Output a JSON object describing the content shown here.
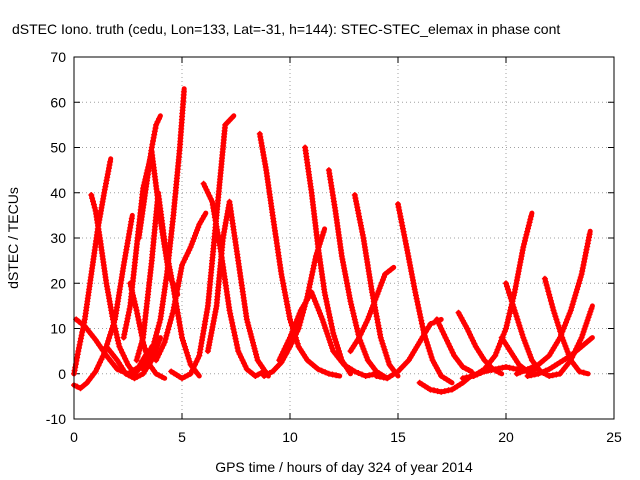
{
  "chart_data": {
    "type": "scatter",
    "title": "dSTEC Iono. truth (cedu, Lon=133, Lat=-31, h=144): STEC-STEC_elemax in phase cont",
    "xlabel": "GPS time / hours of day 324 of year 2014",
    "ylabel": "dSTEC  / TECUs",
    "xlim": [
      0,
      25
    ],
    "ylim": [
      -10,
      70
    ],
    "xticks": [
      "0",
      "5",
      "10",
      "15",
      "20",
      "25"
    ],
    "yticks": [
      "-10",
      "0",
      "10",
      "20",
      "30",
      "40",
      "50",
      "60",
      "70"
    ],
    "grid": true,
    "color": "#ff0000",
    "series": [
      {
        "x": [
          0.0,
          0.3,
          0.6,
          1.0,
          1.4,
          1.9,
          2.3,
          2.7
        ],
        "y": [
          -2.5,
          -3.2,
          -2.0,
          0.5,
          4.5,
          12.0,
          24.0,
          35.0
        ]
      },
      {
        "x": [
          0.0,
          0.2,
          0.5,
          0.8,
          1.1,
          1.4,
          1.7
        ],
        "y": [
          0.0,
          5.0,
          12.0,
          22.0,
          32.0,
          40.0,
          47.5
        ]
      },
      {
        "x": [
          0.1,
          0.5,
          1.0,
          1.5,
          2.0,
          2.5,
          3.0,
          3.3
        ],
        "y": [
          12.0,
          10.5,
          7.5,
          4.0,
          1.0,
          0.0,
          1.5,
          4.0
        ]
      },
      {
        "x": [
          0.8,
          1.0,
          1.2,
          1.5,
          1.8,
          2.1,
          2.5,
          2.8,
          3.2,
          3.6
        ],
        "y": [
          39.5,
          36.0,
          30.0,
          20.0,
          12.0,
          6.0,
          2.0,
          0.0,
          2.0,
          6.0
        ]
      },
      {
        "x": [
          1.5,
          2.0,
          2.4,
          2.8,
          3.2,
          3.6,
          4.0
        ],
        "y": [
          6.0,
          3.0,
          0.0,
          -1.0,
          0.0,
          3.0,
          8.0
        ]
      },
      {
        "x": [
          2.3,
          2.6,
          2.9,
          3.2,
          3.6,
          4.0,
          4.4,
          4.8
        ],
        "y": [
          8.0,
          15.0,
          28.0,
          41.0,
          49.0,
          34.0,
          22.0,
          17.5
        ]
      },
      {
        "x": [
          2.6,
          2.9,
          3.2,
          3.5,
          3.8,
          4.2
        ],
        "y": [
          20.0,
          14.0,
          7.0,
          2.0,
          0.0,
          -1.0
        ]
      },
      {
        "x": [
          2.9,
          3.2,
          3.6,
          3.9,
          4.2,
          4.6,
          5.0,
          5.4,
          5.8
        ],
        "y": [
          3.0,
          8.0,
          25.0,
          40.0,
          29.0,
          19.0,
          8.0,
          2.0,
          -0.5
        ]
      },
      {
        "x": [
          3.0,
          3.3,
          3.6,
          3.8,
          4.0
        ],
        "y": [
          30.0,
          40.0,
          50.0,
          55.0,
          57.0
        ]
      },
      {
        "x": [
          3.8,
          4.2,
          4.6,
          5.0,
          5.4,
          5.8,
          6.1
        ],
        "y": [
          3.0,
          7.0,
          14.0,
          24.0,
          28.0,
          33.0,
          35.5
        ]
      },
      {
        "x": [
          3.2,
          3.6,
          4.0,
          4.3,
          4.6,
          4.9,
          5.1
        ],
        "y": [
          1.0,
          5.0,
          12.0,
          22.0,
          35.0,
          50.0,
          63.0
        ]
      },
      {
        "x": [
          4.5,
          5.0,
          5.4,
          5.8,
          6.2,
          6.6,
          7.0,
          7.4
        ],
        "y": [
          0.5,
          -1.0,
          0.0,
          4.0,
          15.0,
          35.0,
          55.0,
          57.0
        ]
      },
      {
        "x": [
          6.0,
          6.4,
          6.8,
          7.2,
          7.6,
          8.0,
          8.4,
          8.8
        ],
        "y": [
          42.0,
          38.0,
          27.0,
          14.0,
          5.0,
          1.0,
          -0.5,
          0.5
        ]
      },
      {
        "x": [
          6.2,
          6.6,
          6.9,
          7.2,
          7.6,
          8.0,
          8.5,
          9.0
        ],
        "y": [
          5.0,
          15.0,
          30.0,
          38.0,
          25.0,
          12.0,
          3.0,
          -0.5
        ]
      },
      {
        "x": [
          8.6,
          8.9,
          9.2,
          9.6,
          10.0,
          10.4,
          10.8,
          11.3,
          11.8,
          12.3
        ],
        "y": [
          53.0,
          45.0,
          35.0,
          22.0,
          12.0,
          6.0,
          3.0,
          1.0,
          0.0,
          -0.5
        ]
      },
      {
        "x": [
          8.8,
          9.2,
          9.6,
          10.0,
          10.4,
          10.8,
          11.2,
          11.6
        ],
        "y": [
          -0.5,
          0.5,
          2.5,
          6.0,
          10.0,
          17.0,
          26.0,
          32.0
        ]
      },
      {
        "x": [
          10.7,
          11.0,
          11.3,
          11.6,
          12.0,
          12.4,
          12.8
        ],
        "y": [
          50.0,
          40.0,
          28.0,
          18.0,
          9.0,
          3.0,
          0.0
        ]
      },
      {
        "x": [
          9.5,
          10.0,
          10.5,
          11.0,
          11.5,
          12.0,
          12.5,
          13.0,
          13.5,
          14.0
        ],
        "y": [
          3.0,
          8.0,
          14.0,
          18.0,
          12.0,
          5.0,
          2.0,
          0.5,
          -0.5,
          0.0
        ]
      },
      {
        "x": [
          11.8,
          12.1,
          12.4,
          12.8,
          13.2,
          13.6,
          14.0,
          14.5
        ],
        "y": [
          45.0,
          36.0,
          26.0,
          16.0,
          8.0,
          3.0,
          0.5,
          -1.0
        ]
      },
      {
        "x": [
          13.0,
          13.4,
          13.8,
          14.2,
          14.6,
          15.0
        ],
        "y": [
          39.5,
          30.0,
          18.0,
          8.0,
          2.0,
          -0.5
        ]
      },
      {
        "x": [
          12.8,
          13.2,
          13.6,
          14.0,
          14.4,
          14.8
        ],
        "y": [
          5.0,
          8.0,
          12.0,
          17.0,
          22.0,
          23.5
        ]
      },
      {
        "x": [
          15.0,
          15.4,
          15.8,
          16.2,
          16.6,
          17.0,
          17.5
        ],
        "y": [
          37.5,
          28.0,
          18.0,
          9.0,
          3.0,
          -0.5,
          -2.0
        ]
      },
      {
        "x": [
          14.0,
          14.5,
          15.0,
          15.5,
          16.0,
          16.5,
          17.0
        ],
        "y": [
          -0.5,
          -1.0,
          0.5,
          3.0,
          7.0,
          11.0,
          12.0
        ]
      },
      {
        "x": [
          16.0,
          16.5,
          17.0,
          17.5,
          18.0,
          18.5
        ],
        "y": [
          -2.0,
          -3.5,
          -4.0,
          -3.5,
          -2.0,
          0.0
        ]
      },
      {
        "x": [
          16.8,
          17.2,
          17.6,
          18.0,
          18.4
        ],
        "y": [
          12.0,
          8.0,
          4.0,
          1.5,
          0.5
        ]
      },
      {
        "x": [
          17.8,
          18.2,
          18.6,
          19.0,
          19.4,
          19.8
        ],
        "y": [
          13.5,
          10.0,
          6.0,
          3.0,
          1.0,
          0.0
        ]
      },
      {
        "x": [
          18.5,
          19.0,
          19.5,
          20.0,
          20.4,
          20.8,
          21.2
        ],
        "y": [
          -0.5,
          1.0,
          4.0,
          10.0,
          18.0,
          28.0,
          35.5
        ]
      },
      {
        "x": [
          20.0,
          20.4,
          20.8,
          21.2,
          21.6,
          22.0,
          22.5
        ],
        "y": [
          20.0,
          14.0,
          8.0,
          3.0,
          0.5,
          -0.5,
          0.0
        ]
      },
      {
        "x": [
          19.8,
          20.2,
          20.6,
          21.0,
          21.4
        ],
        "y": [
          8.0,
          5.0,
          2.0,
          0.5,
          1.0
        ]
      },
      {
        "x": [
          21.8,
          22.2,
          22.6,
          23.0,
          23.4,
          23.8
        ],
        "y": [
          21.0,
          14.0,
          8.0,
          3.0,
          0.5,
          0.0
        ]
      },
      {
        "x": [
          20.5,
          21.0,
          21.5,
          22.0,
          22.5,
          23.0,
          23.5,
          23.9
        ],
        "y": [
          0.0,
          1.0,
          2.0,
          4.0,
          8.0,
          14.0,
          22.0,
          31.5
        ]
      },
      {
        "x": [
          22.5,
          23.0,
          23.5,
          24.0
        ],
        "y": [
          0.0,
          3.0,
          8.0,
          15.0
        ]
      },
      {
        "x": [
          21.0,
          21.5,
          22.0,
          22.5,
          23.0,
          23.5,
          24.0
        ],
        "y": [
          -0.5,
          0.0,
          1.0,
          2.5,
          4.0,
          6.0,
          8.0
        ]
      },
      {
        "x": [
          18.0,
          18.5,
          19.0,
          19.5,
          20.0,
          20.5,
          21.0
        ],
        "y": [
          -1.0,
          -0.5,
          0.5,
          1.0,
          1.5,
          1.0,
          0.5
        ]
      }
    ]
  }
}
